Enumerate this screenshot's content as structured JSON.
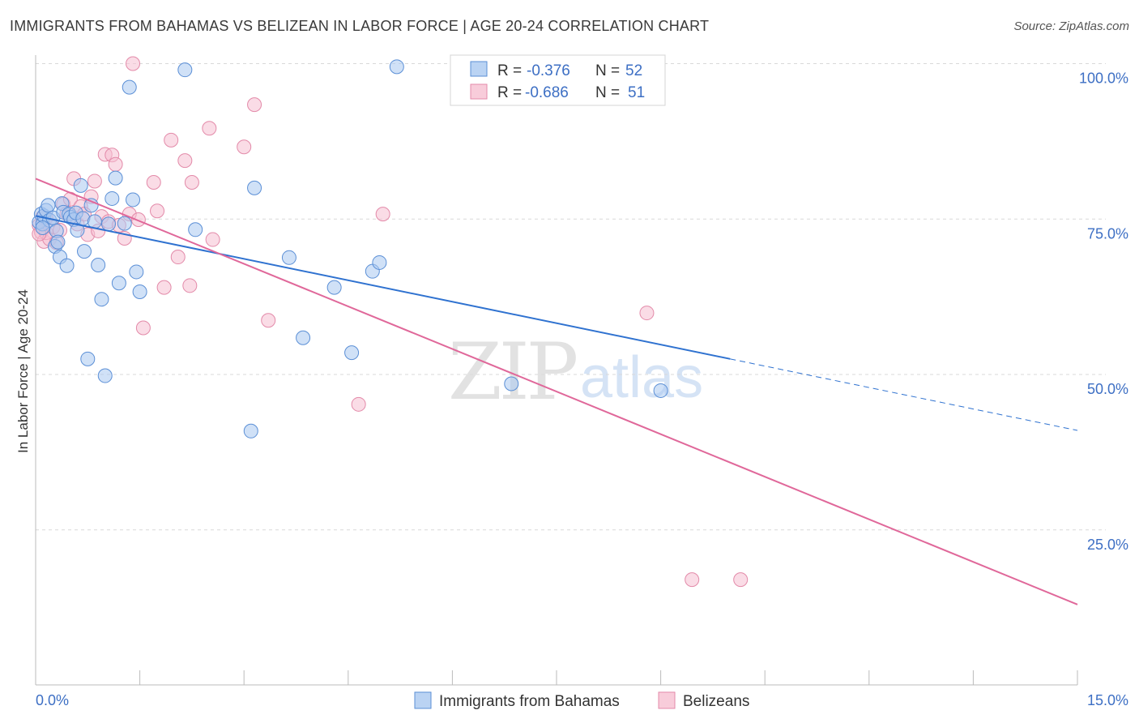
{
  "title": "IMMIGRANTS FROM BAHAMAS VS BELIZEAN IN LABOR FORCE | AGE 20-24 CORRELATION CHART",
  "source": "Source: ZipAtlas.com",
  "watermark": {
    "zip": "ZIP",
    "atlas": "atlas"
  },
  "colors": {
    "blue_fill": "#a9c8f0",
    "blue_stroke": "#5b8fd6",
    "blue_line": "#2f72d0",
    "pink_fill": "#f6bfd1",
    "pink_stroke": "#e38aa9",
    "pink_line": "#e0689a",
    "label_blue": "#3d6fc4",
    "grid": "#d9d9d9"
  },
  "legend": {
    "r_label": "R =",
    "n_label": "N =",
    "rows": [
      {
        "r": "-0.376",
        "n": "52"
      },
      {
        "r": "-0.686",
        "n": "51"
      }
    ]
  },
  "bottom_legend": [
    "Immigrants from Bahamas",
    "Belizeans"
  ],
  "chart_data": {
    "type": "scatter",
    "title": "IMMIGRANTS FROM BAHAMAS VS BELIZEAN IN LABOR FORCE | AGE 20-24 CORRELATION CHART",
    "xlabel": "",
    "ylabel": "In Labor Force | Age 20-24",
    "xlim": [
      0,
      15
    ],
    "ylim": [
      0,
      105
    ],
    "x_tick_labels": [
      {
        "value": 0,
        "label": "0.0%"
      },
      {
        "value": 15,
        "label": "15.0%"
      }
    ],
    "y_tick_labels": [
      {
        "value": 100,
        "label": "100.0%"
      },
      {
        "value": 75,
        "label": "75.0%"
      },
      {
        "value": 50,
        "label": "50.0%"
      },
      {
        "value": 25,
        "label": "25.0%"
      }
    ],
    "series": [
      {
        "name": "Immigrants from Bahamas",
        "points": [
          [
            0.05,
            74.5
          ],
          [
            0.08,
            75.8
          ],
          [
            0.1,
            74.2
          ],
          [
            0.12,
            75.5
          ],
          [
            0.15,
            76.4
          ],
          [
            0.18,
            77.2
          ],
          [
            0.2,
            74.8
          ],
          [
            0.25,
            75.2
          ],
          [
            0.28,
            70.6
          ],
          [
            0.3,
            73.1
          ],
          [
            0.32,
            71.3
          ],
          [
            0.35,
            68.9
          ],
          [
            0.38,
            77.5
          ],
          [
            0.4,
            76.1
          ],
          [
            0.45,
            67.5
          ],
          [
            0.48,
            75.8
          ],
          [
            0.5,
            75.3
          ],
          [
            0.55,
            74.9
          ],
          [
            0.58,
            76.0
          ],
          [
            0.6,
            73.2
          ],
          [
            0.65,
            80.4
          ],
          [
            0.68,
            75.1
          ],
          [
            0.7,
            69.8
          ],
          [
            0.75,
            52.5
          ],
          [
            0.8,
            77.2
          ],
          [
            0.85,
            74.6
          ],
          [
            0.9,
            67.6
          ],
          [
            0.95,
            62.1
          ],
          [
            1.0,
            49.8
          ],
          [
            1.05,
            74.2
          ],
          [
            1.1,
            78.3
          ],
          [
            1.15,
            81.6
          ],
          [
            1.2,
            64.7
          ],
          [
            1.28,
            74.3
          ],
          [
            1.35,
            96.2
          ],
          [
            1.4,
            78.1
          ],
          [
            1.45,
            66.5
          ],
          [
            1.5,
            63.3
          ],
          [
            2.15,
            99.0
          ],
          [
            2.3,
            73.3
          ],
          [
            3.1,
            40.9
          ],
          [
            3.15,
            80.0
          ],
          [
            3.65,
            68.8
          ],
          [
            3.85,
            55.9
          ],
          [
            4.3,
            64.0
          ],
          [
            4.55,
            53.5
          ],
          [
            4.85,
            66.6
          ],
          [
            4.95,
            68.0
          ],
          [
            5.2,
            99.5
          ],
          [
            6.85,
            48.5
          ],
          [
            9.0,
            47.4
          ],
          [
            0.1,
            73.6
          ]
        ]
      },
      {
        "name": "Belizeans",
        "points": [
          [
            0.05,
            74.0
          ],
          [
            0.08,
            72.9
          ],
          [
            0.1,
            75.3
          ],
          [
            0.12,
            71.4
          ],
          [
            0.15,
            72.8
          ],
          [
            0.2,
            71.8
          ],
          [
            0.25,
            73.7
          ],
          [
            0.3,
            71.2
          ],
          [
            0.35,
            73.2
          ],
          [
            0.4,
            77.4
          ],
          [
            0.45,
            75.9
          ],
          [
            0.5,
            78.2
          ],
          [
            0.55,
            81.5
          ],
          [
            0.6,
            74.2
          ],
          [
            0.65,
            77.0
          ],
          [
            0.7,
            75.8
          ],
          [
            0.75,
            72.5
          ],
          [
            0.8,
            78.6
          ],
          [
            0.85,
            81.1
          ],
          [
            0.9,
            73.1
          ],
          [
            0.95,
            75.4
          ],
          [
            1.0,
            85.4
          ],
          [
            1.05,
            74.6
          ],
          [
            1.1,
            85.3
          ],
          [
            1.15,
            83.8
          ],
          [
            1.2,
            74.0
          ],
          [
            1.28,
            71.9
          ],
          [
            1.35,
            75.8
          ],
          [
            1.4,
            100.0
          ],
          [
            1.48,
            74.9
          ],
          [
            1.55,
            57.5
          ],
          [
            1.7,
            80.9
          ],
          [
            1.75,
            76.3
          ],
          [
            1.85,
            64.0
          ],
          [
            1.95,
            87.7
          ],
          [
            2.05,
            68.9
          ],
          [
            2.15,
            84.4
          ],
          [
            2.22,
            64.3
          ],
          [
            2.25,
            80.9
          ],
          [
            2.5,
            89.6
          ],
          [
            2.55,
            71.7
          ],
          [
            3.0,
            86.6
          ],
          [
            3.15,
            93.4
          ],
          [
            3.35,
            58.7
          ],
          [
            4.65,
            45.2
          ],
          [
            5.0,
            75.8
          ],
          [
            8.8,
            59.9
          ],
          [
            9.45,
            17.0
          ],
          [
            10.15,
            17.0
          ],
          [
            0.05,
            72.6
          ],
          [
            0.15,
            75.2
          ]
        ]
      }
    ],
    "trend_lines": [
      {
        "series": "Immigrants from Bahamas",
        "solid_from": [
          0,
          75.5
        ],
        "solid_to": [
          10.0,
          52.5
        ],
        "dashed_to": [
          15.0,
          41.0
        ]
      },
      {
        "series": "Belizeans",
        "from": [
          0,
          81.5
        ],
        "to": [
          15.0,
          13.0
        ]
      }
    ]
  }
}
